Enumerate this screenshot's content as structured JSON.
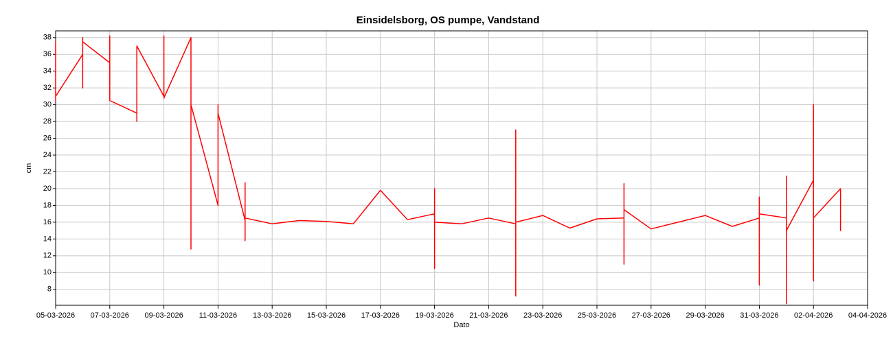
{
  "chart_data": {
    "type": "line",
    "title": "Einsidelsborg, OS pumpe, Vandstand",
    "x_label": "Dato",
    "y_label": "cm",
    "x": [
      "05-03-2026",
      "05-03-2026",
      "05-03-2026",
      "05-03-2026",
      "05-03-2026",
      "06-03-2026",
      "06-03-2026",
      "06-03-2026",
      "06-03-2026",
      "06-03-2026",
      "07-03-2026",
      "07-03-2026",
      "07-03-2026",
      "07-03-2026",
      "07-03-2026",
      "08-03-2026",
      "08-03-2026",
      "08-03-2026",
      "08-03-2026",
      "08-03-2026",
      "09-03-2026",
      "09-03-2026",
      "09-03-2026",
      "09-03-2026",
      "10-03-2026",
      "10-03-2026",
      "10-03-2026",
      "10-03-2026",
      "10-03-2026",
      "10-03-2026",
      "11-03-2026",
      "11-03-2026",
      "11-03-2026",
      "12-03-2026",
      "12-03-2026",
      "12-03-2026",
      "12-03-2026",
      "13-03-2026",
      "14-03-2026",
      "15-03-2026",
      "16-03-2026",
      "17-03-2026",
      "18-03-2026",
      "19-03-2026",
      "19-03-2026",
      "19-03-2026",
      "19-03-2026",
      "20-03-2026",
      "21-03-2026",
      "22-03-2026",
      "22-03-2026",
      "22-03-2026",
      "22-03-2026",
      "23-03-2026",
      "24-03-2026",
      "25-03-2026",
      "26-03-2026",
      "26-03-2026",
      "26-03-2026",
      "26-03-2026",
      "27-03-2026",
      "28-03-2026",
      "29-03-2026",
      "30-03-2026",
      "31-03-2026",
      "31-03-2026",
      "31-03-2026",
      "31-03-2026",
      "01-04-2026",
      "01-04-2026",
      "01-04-2026",
      "01-04-2026",
      "01-04-2026",
      "02-04-2026",
      "02-04-2026",
      "02-04-2026",
      "02-04-2026",
      "02-04-2026",
      "02-04-2026",
      "02-04-2026",
      "03-04-2026",
      "03-04-2026",
      "03-04-2026",
      "03-04-2026",
      "03-04-2026",
      "03-04-2026"
    ],
    "series": [
      {
        "name": "Vandstand",
        "color": "#ff0000",
        "values": [
          31,
          37.5,
          30.5,
          37,
          31,
          36,
          32,
          38,
          33,
          37.5,
          35,
          38.2,
          31,
          37,
          30.5,
          29,
          36.5,
          35,
          28,
          37,
          31,
          38,
          38.2,
          30.8,
          38,
          12.8,
          37.5,
          29.5,
          37.5,
          30,
          18,
          30,
          29,
          16.2,
          20.7,
          13.8,
          16.5,
          15.8,
          16.2,
          16.1,
          15.8,
          19.8,
          16.3,
          17,
          20,
          10.5,
          16,
          15.8,
          16.5,
          15.8,
          27,
          7.2,
          16,
          16.8,
          15.3,
          16.4,
          16.5,
          20.6,
          11,
          17.5,
          15.2,
          16,
          16.8,
          15.5,
          16.5,
          19,
          8.5,
          17,
          16.5,
          15.2,
          6.3,
          21.5,
          15,
          21,
          14.5,
          20.5,
          14.8,
          30,
          9,
          16.5,
          20,
          15,
          19.5,
          15.2,
          19.5,
          15
        ]
      }
    ],
    "xlim": [
      "05-03-2026",
      "04-04-2026"
    ],
    "xticks": [
      "05-03-2026",
      "07-03-2026",
      "09-03-2026",
      "11-03-2026",
      "13-03-2026",
      "15-03-2026",
      "17-03-2026",
      "19-03-2026",
      "21-03-2026",
      "23-03-2026",
      "25-03-2026",
      "27-03-2026",
      "29-03-2026",
      "31-03-2026",
      "02-04-2026",
      "04-04-2026"
    ],
    "ylim": [
      6.1,
      38.8
    ],
    "yticks": [
      8,
      10,
      12,
      14,
      16,
      18,
      20,
      22,
      24,
      26,
      28,
      30,
      32,
      34,
      36,
      38
    ],
    "grid": true
  }
}
